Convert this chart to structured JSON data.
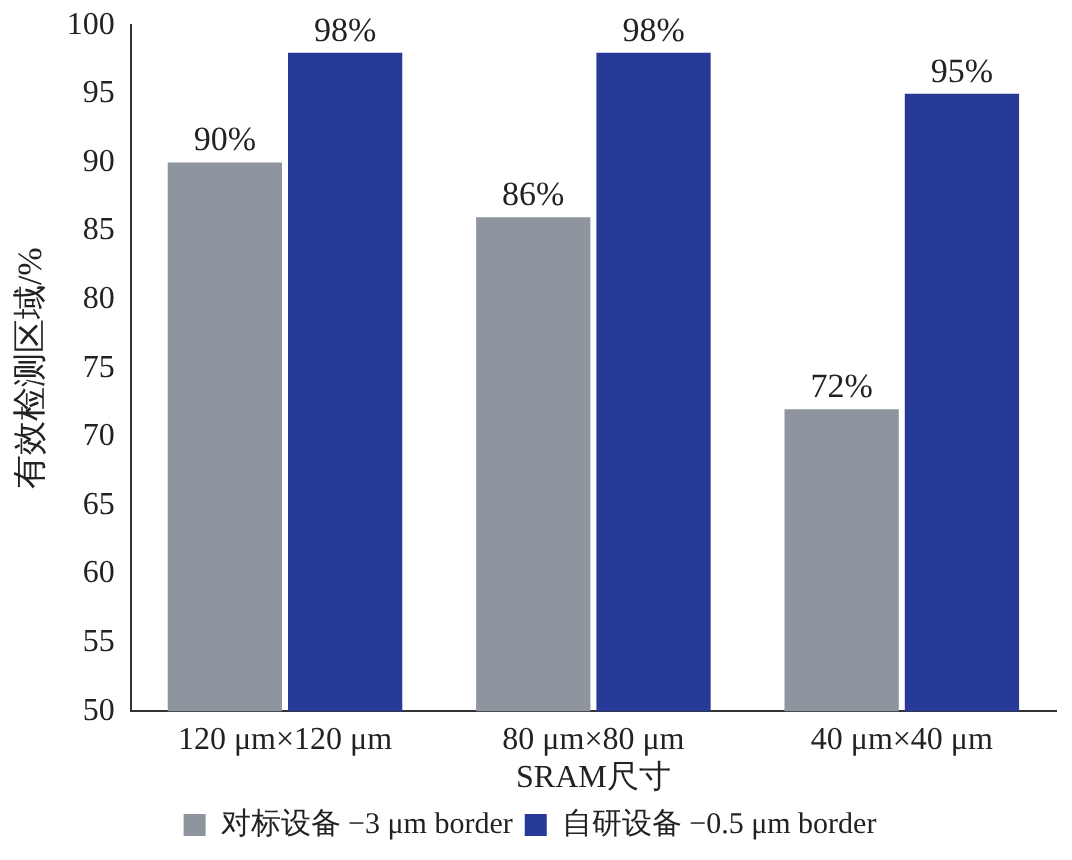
{
  "chart_data": {
    "type": "bar",
    "xlabel": "SRAM尺寸",
    "ylabel": "有效检测区域/%",
    "categories": [
      "120 μm×120 μm",
      "80 μm×80 μm",
      "40 μm×40 μm"
    ],
    "series": [
      {
        "name": "对标设备 −3 μm border",
        "color": "#8e959e",
        "values": [
          90,
          86,
          72
        ],
        "value_labels": [
          "90%",
          "86%",
          "72%"
        ]
      },
      {
        "name": "自研设备 −0.5 μm border",
        "color": "#283a97",
        "values": [
          98,
          98,
          95
        ],
        "value_labels": [
          "98%",
          "98%",
          "95%"
        ]
      }
    ],
    "ylim": [
      50,
      100
    ],
    "yticks": [
      50,
      55,
      60,
      65,
      70,
      75,
      80,
      85,
      90,
      95,
      100
    ],
    "grid": false,
    "legend": "bottom"
  }
}
